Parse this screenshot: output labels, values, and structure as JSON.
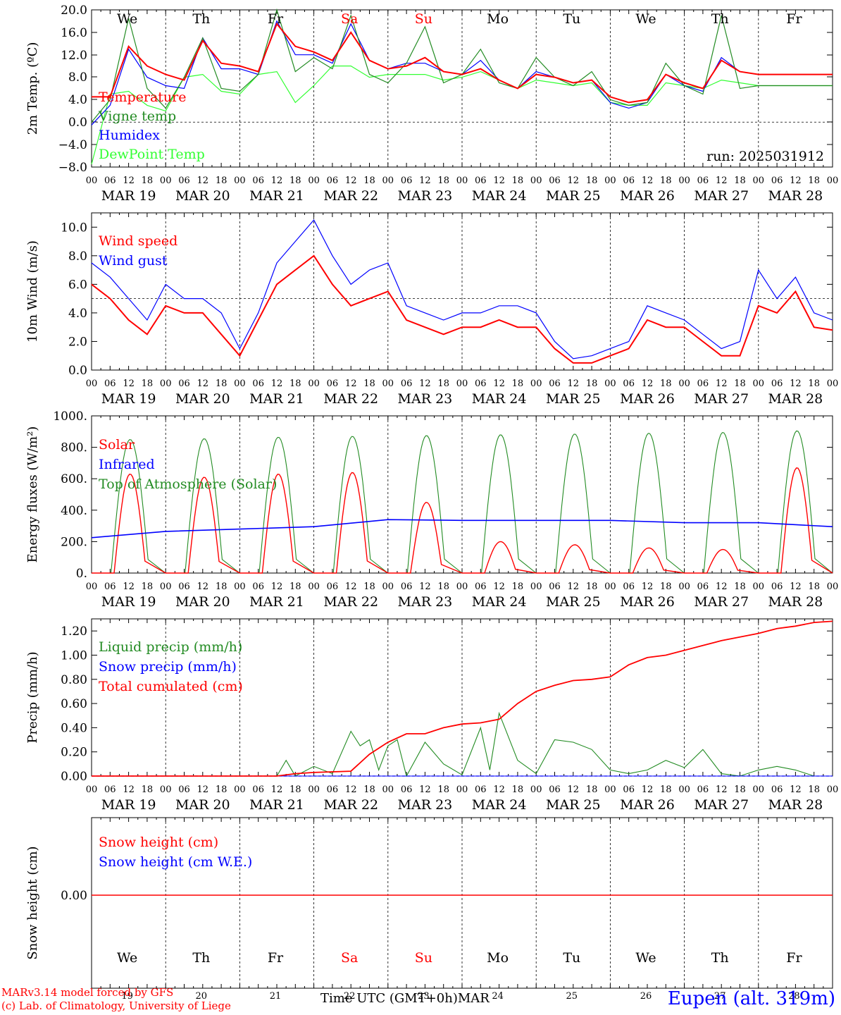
{
  "footer": {
    "model_line": "MARv3.14 model forced by GFS",
    "lab_line": "(c) Lab. of Climatology, University of Liege",
    "time_axis_label": "Time UTC (GMT+0h)MAR",
    "station": "Eupen (alt. 319m)"
  },
  "colors": {
    "red": "#ff0000",
    "green": "#228b22",
    "blue": "#0000ff",
    "lightgreen": "#32ff32"
  },
  "chart_data": [
    {
      "type": "line",
      "ylabel": "2m Temp. (ºC)",
      "ylim": [
        -8,
        20
      ],
      "yticks": [
        "20.0",
        "16.0",
        "12.0",
        "8.0",
        "4.0",
        "0.0",
        "−4.0",
        "−8.0"
      ],
      "run_label": "run: 2025031912",
      "days_top": [
        "We",
        "Th",
        "Fr",
        "Sa",
        "Su",
        "Mo",
        "Tu",
        "We",
        "Th",
        "Fr"
      ],
      "dates": [
        "MAR 19",
        "MAR 20",
        "MAR 21",
        "MAR 22",
        "MAR 23",
        "MAR 24",
        "MAR 25",
        "MAR 26",
        "MAR 27",
        "MAR 28"
      ],
      "hour_ticks": [
        "00",
        "06",
        "12",
        "18"
      ],
      "x": [
        0,
        6,
        12,
        18,
        24,
        30,
        36,
        42,
        48,
        54,
        60,
        66,
        72,
        78,
        84,
        90,
        96,
        102,
        108,
        114,
        120,
        126,
        132,
        138,
        144,
        150,
        156,
        162,
        168,
        174,
        180,
        186,
        192,
        198,
        204,
        210,
        216,
        222,
        228,
        234,
        240
      ],
      "series": [
        {
          "name": "Temperature",
          "color": "red",
          "values": [
            4.5,
            4.5,
            13.5,
            10.0,
            8.5,
            7.5,
            14.5,
            10.5,
            10.0,
            9.0,
            17.5,
            13.5,
            12.5,
            11.0,
            16.0,
            11.0,
            9.5,
            10.0,
            11.5,
            9.0,
            8.5,
            9.5,
            7.5,
            6.0,
            8.5,
            8.0,
            7.0,
            7.5,
            4.5,
            3.5,
            4.0,
            8.5,
            7.0,
            6.0,
            11.0,
            9.0,
            8.5,
            8.5,
            8.5,
            8.5,
            8.5
          ]
        },
        {
          "name": "Vigne temp",
          "color": "green",
          "values": [
            0.0,
            4.0,
            18.5,
            6.0,
            2.5,
            8.0,
            15.0,
            6.0,
            5.5,
            8.5,
            20.0,
            9.0,
            11.5,
            9.5,
            19.0,
            8.5,
            7.0,
            10.5,
            17.0,
            7.0,
            8.5,
            13.0,
            7.0,
            6.0,
            11.5,
            8.0,
            6.5,
            9.0,
            4.0,
            3.0,
            3.5,
            10.5,
            6.5,
            5.0,
            19.0,
            6.0,
            6.5,
            6.5,
            6.5,
            6.5,
            6.5
          ]
        },
        {
          "name": "Humidex",
          "color": "blue",
          "values": [
            -0.5,
            3.0,
            13.0,
            8.0,
            6.5,
            6.0,
            15.0,
            9.5,
            9.5,
            8.5,
            18.0,
            12.0,
            12.0,
            10.5,
            17.5,
            11.0,
            9.5,
            10.5,
            10.5,
            9.0,
            8.5,
            11.0,
            7.5,
            6.0,
            9.0,
            8.0,
            7.0,
            7.5,
            3.5,
            2.5,
            3.5,
            8.5,
            6.5,
            5.5,
            11.5,
            9.0,
            8.5,
            8.5,
            8.5,
            8.5,
            8.5
          ]
        },
        {
          "name": "DewPoint Temp",
          "color": "lightgreen",
          "values": [
            -7.5,
            5.0,
            5.5,
            3.0,
            2.0,
            8.0,
            8.5,
            5.5,
            5.0,
            8.5,
            9.0,
            3.5,
            6.5,
            10.0,
            10.0,
            8.0,
            8.5,
            8.5,
            8.5,
            7.5,
            8.0,
            9.0,
            7.5,
            6.0,
            7.5,
            7.0,
            6.5,
            7.0,
            3.5,
            3.0,
            3.0,
            7.0,
            6.5,
            6.0,
            7.5,
            7.0,
            6.5,
            6.5,
            6.5,
            6.5,
            6.5
          ]
        }
      ]
    },
    {
      "type": "line",
      "ylabel": "10m Wind (m/s)",
      "ylim": [
        0,
        11
      ],
      "yticks": [
        "0.0",
        "2.0",
        "4.0",
        "6.0",
        "8.0",
        "10.0"
      ],
      "dates": [
        "MAR 19",
        "MAR 20",
        "MAR 21",
        "MAR 22",
        "MAR 23",
        "MAR 24",
        "MAR 25",
        "MAR 26",
        "MAR 27",
        "MAR 28"
      ],
      "x": [
        0,
        6,
        12,
        18,
        24,
        30,
        36,
        42,
        48,
        54,
        60,
        66,
        72,
        78,
        84,
        90,
        96,
        102,
        108,
        114,
        120,
        126,
        132,
        138,
        144,
        150,
        156,
        162,
        168,
        174,
        180,
        186,
        192,
        198,
        204,
        210,
        216,
        222,
        228,
        234,
        240
      ],
      "series": [
        {
          "name": "Wind speed",
          "color": "red",
          "values": [
            6.0,
            5.0,
            3.5,
            2.5,
            4.5,
            4.0,
            4.0,
            2.5,
            1.0,
            3.5,
            6.0,
            7.0,
            8.0,
            6.0,
            4.5,
            5.0,
            5.5,
            3.5,
            3.0,
            2.5,
            3.0,
            3.0,
            3.5,
            3.0,
            3.0,
            1.5,
            0.5,
            0.5,
            1.0,
            1.5,
            3.5,
            3.0,
            3.0,
            2.0,
            1.0,
            1.0,
            4.5,
            4.0,
            5.5,
            3.0,
            2.8
          ]
        },
        {
          "name": "Wind gust",
          "color": "blue",
          "values": [
            7.5,
            6.5,
            5.0,
            3.5,
            6.0,
            5.0,
            5.0,
            4.0,
            1.5,
            4.0,
            7.5,
            9.0,
            10.5,
            8.0,
            6.0,
            7.0,
            7.5,
            4.5,
            4.0,
            3.5,
            4.0,
            4.0,
            4.5,
            4.5,
            4.0,
            2.0,
            0.8,
            1.0,
            1.5,
            2.0,
            4.5,
            4.0,
            3.5,
            2.5,
            1.5,
            2.0,
            7.0,
            5.0,
            6.5,
            4.0,
            3.5
          ]
        }
      ]
    },
    {
      "type": "line",
      "ylabel": "Energy fluxes (W/m²)",
      "ylim": [
        0,
        1000
      ],
      "yticks": [
        "0.",
        "200.",
        "400.",
        "600.",
        "800.",
        "1000."
      ],
      "dates": [
        "MAR 19",
        "MAR 20",
        "MAR 21",
        "MAR 22",
        "MAR 23",
        "MAR 24",
        "MAR 25",
        "MAR 26",
        "MAR 27",
        "MAR 28"
      ],
      "series": [
        {
          "name": "Solar",
          "color": "red",
          "peaks": [
            630,
            610,
            630,
            640,
            450,
            200,
            180,
            160,
            150,
            670
          ]
        },
        {
          "name": "Infrared",
          "color": "blue",
          "x": [
            0,
            24,
            48,
            72,
            96,
            120,
            144,
            168,
            192,
            216,
            240
          ],
          "values": [
            225,
            265,
            280,
            295,
            340,
            335,
            335,
            335,
            320,
            320,
            295
          ]
        },
        {
          "name": "Top of Atmosphere (Solar)",
          "color": "green",
          "peaks": [
            850,
            855,
            865,
            870,
            875,
            880,
            885,
            890,
            895,
            905
          ]
        }
      ]
    },
    {
      "type": "line",
      "ylabel": "Precip (mm/h)",
      "ylim": [
        0,
        1.3
      ],
      "yticks": [
        "0.00",
        "0.20",
        "0.40",
        "0.60",
        "0.80",
        "1.00",
        "1.20"
      ],
      "dates": [
        "MAR 19",
        "MAR 20",
        "MAR 21",
        "MAR 22",
        "MAR 23",
        "MAR 24",
        "MAR 25",
        "MAR 26",
        "MAR 27",
        "MAR 28"
      ],
      "series": [
        {
          "name": "Liquid precip (mm/h)",
          "color": "green",
          "x": [
            0,
            60,
            63,
            66,
            72,
            78,
            84,
            87,
            90,
            93,
            96,
            99,
            102,
            108,
            114,
            120,
            126,
            129,
            132,
            138,
            144,
            150,
            156,
            162,
            168,
            174,
            180,
            186,
            192,
            198,
            204,
            210,
            216,
            222,
            228,
            234,
            240
          ],
          "values": [
            0,
            0,
            0.13,
            0,
            0.08,
            0.02,
            0.37,
            0.25,
            0.3,
            0.05,
            0.25,
            0.3,
            0,
            0.28,
            0.1,
            0.01,
            0.4,
            0.05,
            0.52,
            0.13,
            0.02,
            0.3,
            0.28,
            0.22,
            0.05,
            0.02,
            0.05,
            0.13,
            0.07,
            0.22,
            0.02,
            0.0,
            0.05,
            0.08,
            0.05,
            0,
            0
          ]
        },
        {
          "name": "Snow precip (mm/h)",
          "color": "blue",
          "x": [
            0,
            240
          ],
          "values": [
            0,
            0
          ]
        },
        {
          "name": "Total cumulated (cm)",
          "color": "red",
          "x": [
            0,
            60,
            66,
            72,
            84,
            90,
            96,
            102,
            108,
            114,
            120,
            126,
            132,
            138,
            144,
            150,
            156,
            162,
            168,
            174,
            180,
            186,
            192,
            198,
            204,
            210,
            216,
            222,
            228,
            234,
            240
          ],
          "values": [
            0,
            0,
            0.02,
            0.03,
            0.04,
            0.18,
            0.28,
            0.35,
            0.35,
            0.4,
            0.43,
            0.44,
            0.47,
            0.6,
            0.7,
            0.75,
            0.79,
            0.8,
            0.82,
            0.92,
            0.98,
            1.0,
            1.04,
            1.08,
            1.12,
            1.15,
            1.18,
            1.22,
            1.24,
            1.27,
            1.28
          ]
        }
      ]
    },
    {
      "type": "line",
      "ylabel": "Snow height (cm)",
      "yticks": [
        "0.00"
      ],
      "days_bottom": [
        "We",
        "Th",
        "Fr",
        "Sa",
        "Su",
        "Mo",
        "Tu",
        "We",
        "Th",
        "Fr"
      ],
      "day_numbers": [
        "19",
        "20",
        "21",
        "22",
        "23",
        "24",
        "25",
        "26",
        "27",
        "28"
      ],
      "series": [
        {
          "name": "Snow height (cm)",
          "color": "red",
          "x": [
            0,
            240
          ],
          "values": [
            0,
            0
          ]
        },
        {
          "name": "Snow height (cm W.E.)",
          "color": "blue",
          "x": [
            0,
            240
          ],
          "values": [
            0,
            0
          ]
        }
      ]
    }
  ]
}
